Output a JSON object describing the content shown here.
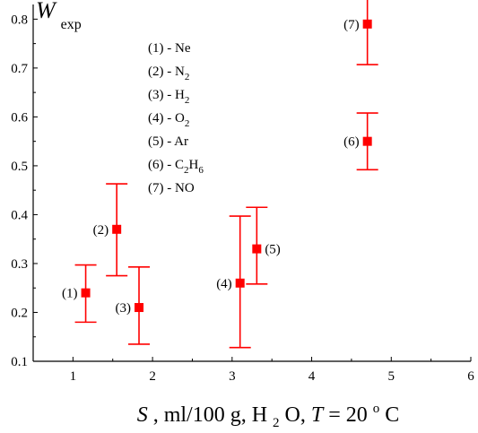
{
  "chart_data": {
    "type": "scatter",
    "ylabel": {
      "main": "W",
      "sub": "exp"
    },
    "xlabel": {
      "var": "S",
      "unit_a": ", ml/100 g, H",
      "h2o_sub": "2",
      "unit_b": "O, ",
      "temp_var": "T",
      "temp_eq": " = 20 ",
      "temp_sup": "o",
      "temp_unit": "C"
    },
    "xlim": [
      0.5,
      6
    ],
    "ylim": [
      0.1,
      0.83
    ],
    "xticks": [
      1,
      2,
      3,
      4,
      5,
      6
    ],
    "yticks": [
      0.1,
      0.2,
      0.3,
      0.4,
      0.5,
      0.6,
      0.7,
      0.8
    ],
    "xtick_labels": [
      "1",
      "2",
      "3",
      "4",
      "5",
      "6"
    ],
    "ytick_labels": [
      "0.1",
      "0.2",
      "0.3",
      "0.4",
      "0.5",
      "0.6",
      "0.7",
      "0.8"
    ],
    "marker_color": "#ff0000",
    "points": [
      {
        "label": "(1)",
        "x": 1.16,
        "y": 0.24,
        "err_low": 0.18,
        "err_high": 0.297,
        "label_side": "left"
      },
      {
        "label": "(2)",
        "x": 1.55,
        "y": 0.37,
        "err_low": 0.275,
        "err_high": 0.463,
        "label_side": "left"
      },
      {
        "label": "(3)",
        "x": 1.83,
        "y": 0.21,
        "err_low": 0.135,
        "err_high": 0.293,
        "label_side": "left"
      },
      {
        "label": "(4)",
        "x": 3.1,
        "y": 0.26,
        "err_low": 0.128,
        "err_high": 0.397,
        "label_side": "left"
      },
      {
        "label": "(5)",
        "x": 3.31,
        "y": 0.33,
        "err_low": 0.258,
        "err_high": 0.415,
        "label_side": "right"
      },
      {
        "label": "(6)",
        "x": 4.7,
        "y": 0.55,
        "err_low": 0.492,
        "err_high": 0.608,
        "label_side": "left"
      },
      {
        "label": "(7)",
        "x": 4.7,
        "y": 0.79,
        "err_low": 0.707,
        "err_high": 0.843,
        "label_side": "left"
      }
    ],
    "legend": [
      {
        "num": "(1) - ",
        "base": "Ne",
        "sub": "",
        "tail": ""
      },
      {
        "num": "(2) - ",
        "base": "N",
        "sub": "2",
        "tail": ""
      },
      {
        "num": "(3) - ",
        "base": "H",
        "sub": "2",
        "tail": ""
      },
      {
        "num": "(4) - ",
        "base": "O",
        "sub": "2",
        "tail": ""
      },
      {
        "num": "(5) - ",
        "base": "Ar",
        "sub": "",
        "tail": ""
      },
      {
        "num": "(6) - ",
        "base": "C",
        "sub": "2",
        "tail": "H",
        "tail_sub": "6"
      },
      {
        "num": "(7) - ",
        "base": "NO",
        "sub": "",
        "tail": ""
      }
    ]
  }
}
